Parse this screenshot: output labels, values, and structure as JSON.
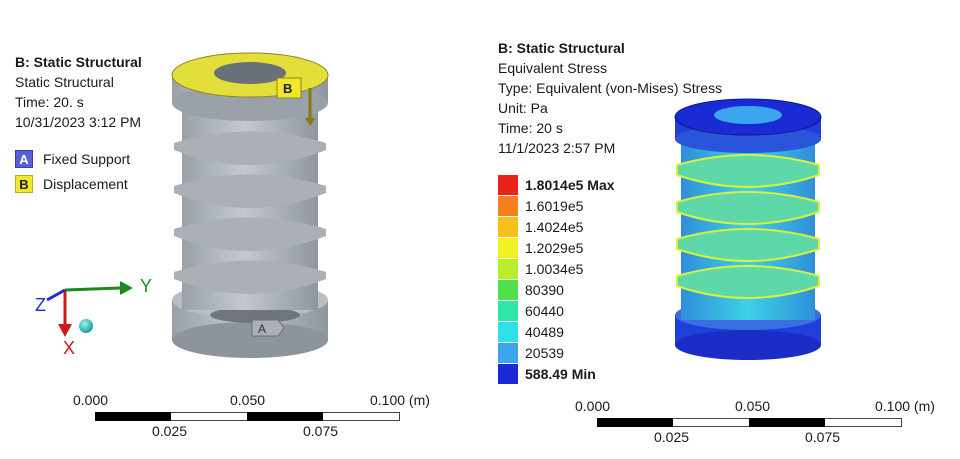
{
  "left": {
    "info": {
      "title": "B: Static Structural",
      "line1": "Static Structural",
      "line2": "Time: 20. s",
      "line3": "10/31/2023 3:12 PM"
    },
    "legend": [
      {
        "tag": "A",
        "label": "Fixed Support",
        "color": "#5b5fd6"
      },
      {
        "tag": "B",
        "label": "Displacement",
        "color": "#f2e72a"
      }
    ],
    "axes": {
      "x": "X",
      "y": "Y",
      "z": "Z"
    },
    "model_labels": {
      "a": "A",
      "b": "B"
    },
    "scale": {
      "top_ticks": [
        "0.000",
        "0.050",
        "0.100 (m)"
      ],
      "bottom_ticks": [
        "0.025",
        "0.075"
      ]
    }
  },
  "right": {
    "info": {
      "title": "B: Static Structural",
      "line1": "Equivalent Stress",
      "line2": "Type: Equivalent (von-Mises) Stress",
      "line3": "Unit: Pa",
      "line4": "Time: 20 s",
      "line5": "11/1/2023 2:57 PM"
    },
    "colorbar": [
      {
        "label": "1.8014e5 Max",
        "color": "#e8231b",
        "bold": true
      },
      {
        "label": "1.6019e5",
        "color": "#f57f1e",
        "bold": false
      },
      {
        "label": "1.4024e5",
        "color": "#f5c019",
        "bold": false
      },
      {
        "label": "1.2029e5",
        "color": "#f2f222",
        "bold": false
      },
      {
        "label": "1.0034e5",
        "color": "#b9ee2a",
        "bold": false
      },
      {
        "label": "80390",
        "color": "#4fe04b",
        "bold": false
      },
      {
        "label": "60440",
        "color": "#2fe6a8",
        "bold": false
      },
      {
        "label": "40489",
        "color": "#2fe0e8",
        "bold": false
      },
      {
        "label": "20539",
        "color": "#3aa6ee",
        "bold": false
      },
      {
        "label": "588.49 Min",
        "color": "#1a2bd6",
        "bold": true
      }
    ],
    "scale": {
      "top_ticks": [
        "0.000",
        "0.050",
        "0.100 (m)"
      ],
      "bottom_ticks": [
        "0.025",
        "0.075"
      ]
    }
  }
}
